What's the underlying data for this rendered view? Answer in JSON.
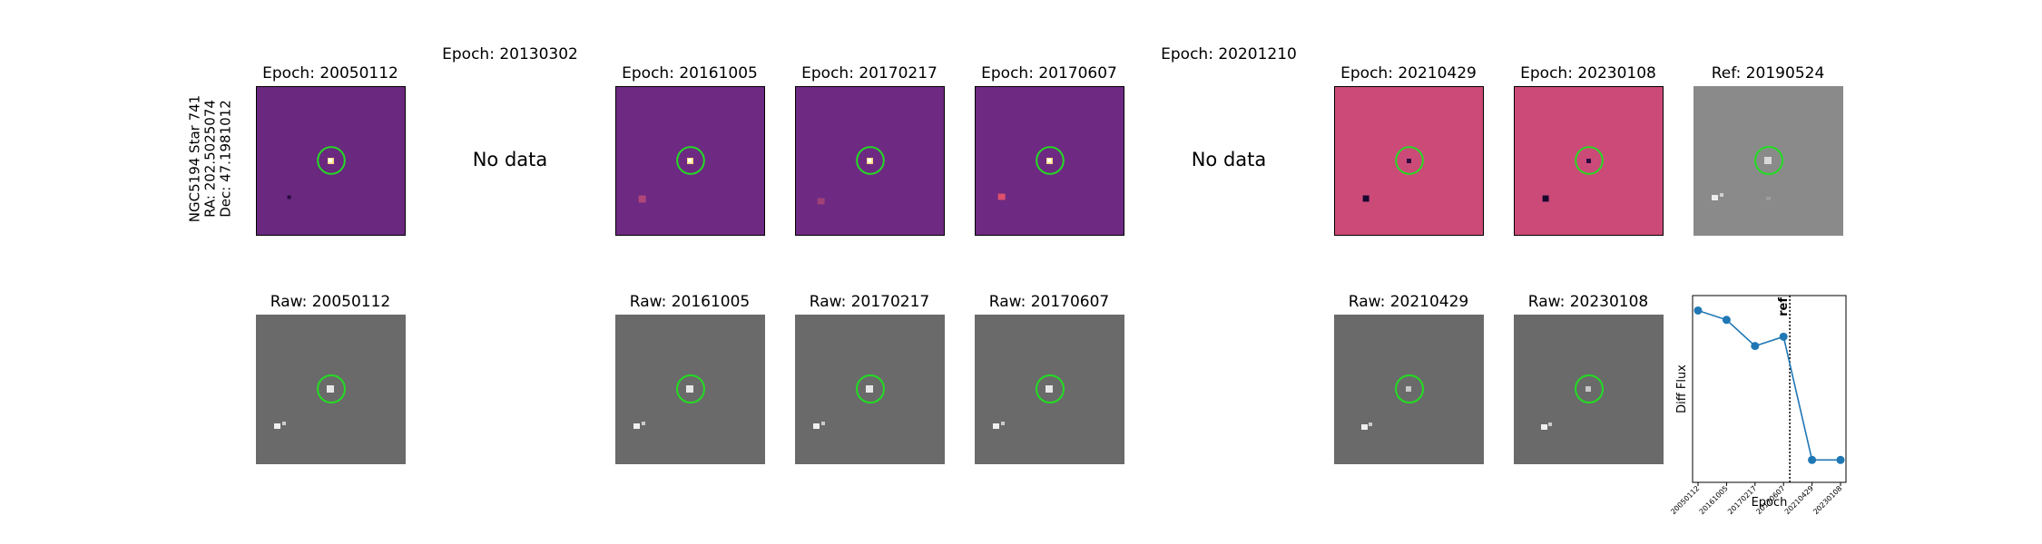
{
  "target": {
    "name": "NGC5194 Star 741",
    "ra_label": "RA: 202.5025074",
    "dec_label": "Dec: 47.1981012"
  },
  "top_row": [
    {
      "title": "Epoch: 20050112",
      "kind": "diff",
      "palette": "purple"
    },
    {
      "title": "Epoch: 20130302",
      "kind": "nodata",
      "nodata_text": "No data"
    },
    {
      "title": "Epoch: 20161005",
      "kind": "diff",
      "palette": "purple"
    },
    {
      "title": "Epoch: 20170217",
      "kind": "diff",
      "palette": "purple"
    },
    {
      "title": "Epoch: 20170607",
      "kind": "diff",
      "palette": "purple"
    },
    {
      "title": "Epoch: 20201210",
      "kind": "nodata",
      "nodata_text": "No data"
    },
    {
      "title": "Epoch: 20210429",
      "kind": "diff",
      "palette": "pink"
    },
    {
      "title": "Epoch: 20230108",
      "kind": "diff",
      "palette": "pink"
    },
    {
      "title": "Ref: 20190524",
      "kind": "ref"
    }
  ],
  "bottom_row": [
    {
      "title": "Raw: 20050112"
    },
    {
      "title": "Raw: 20161005"
    },
    {
      "title": "Raw: 20170217"
    },
    {
      "title": "Raw: 20170607"
    },
    {
      "title": "Raw: 20210429"
    },
    {
      "title": "Raw: 20230108"
    }
  ],
  "colors": {
    "marker_circle": "#22dd22",
    "diff_purple": "#6e2a82",
    "diff_pink": "#cc4a78",
    "raw_gray": "#6a6a6a",
    "ref_gray": "#8a8a8a",
    "series": "#1f77b4"
  },
  "chart_data": {
    "type": "line",
    "x": [
      "20050112",
      "20161005",
      "20170217",
      "20170607",
      "20210429",
      "20230108"
    ],
    "values": [
      0.92,
      0.87,
      0.73,
      0.78,
      0.12,
      0.12
    ],
    "ylim": [
      0,
      1
    ],
    "xlabel": "Epoch",
    "ylabel": "Diff Flux",
    "ref_line": {
      "label": "ref",
      "position_between": [
        "20170607",
        "20210429"
      ],
      "fraction": 0.22
    },
    "grid": false
  }
}
